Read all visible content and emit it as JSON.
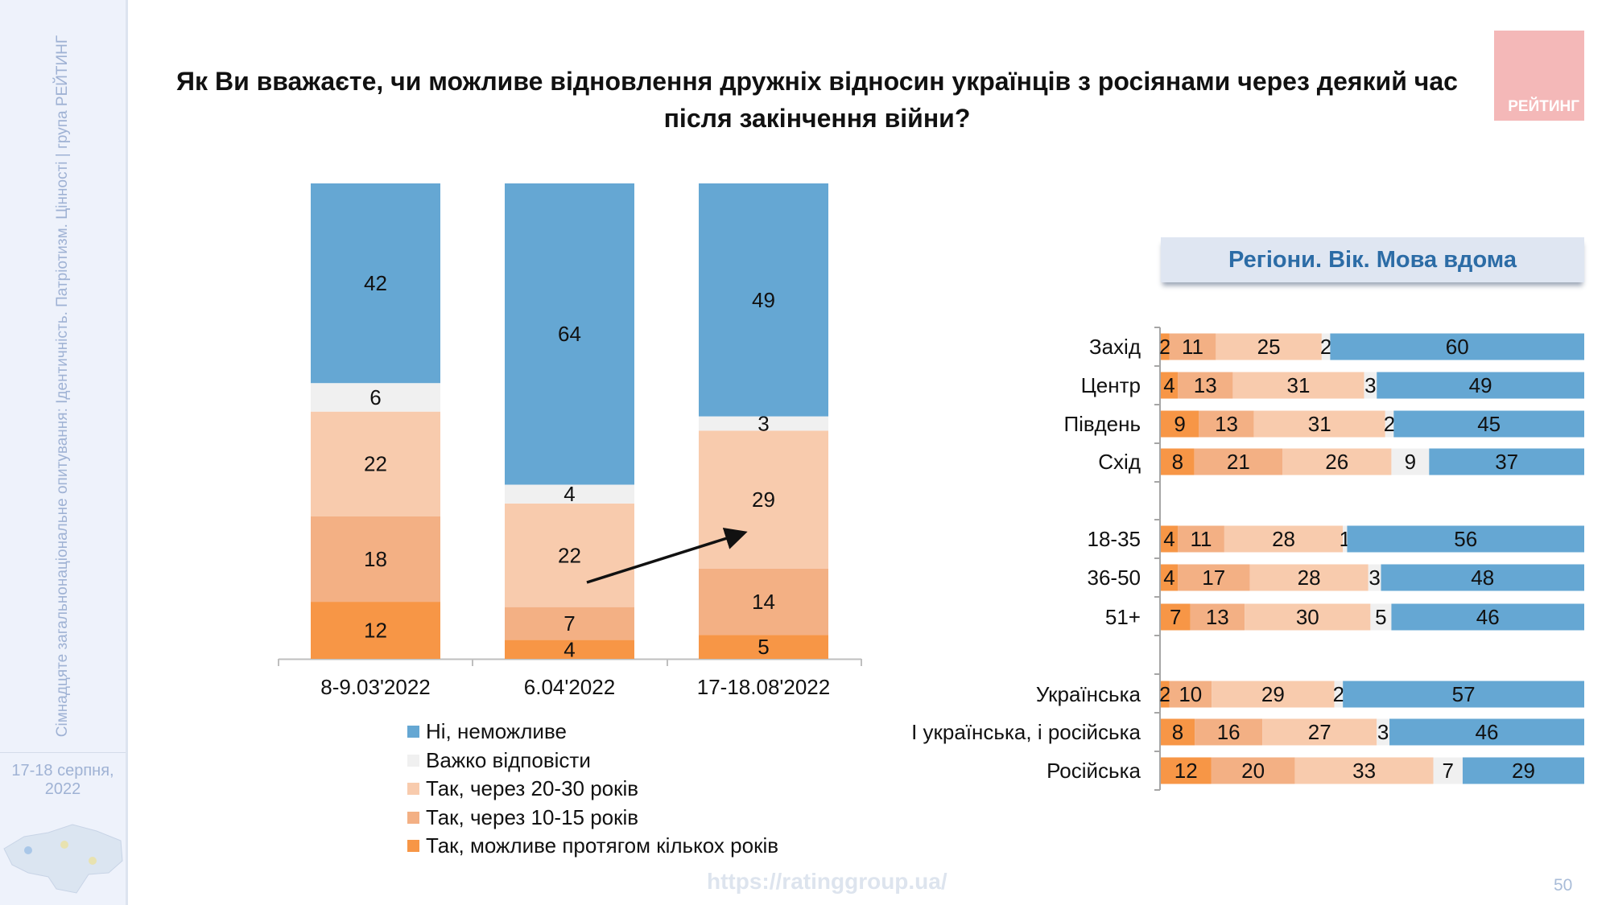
{
  "sidebar": {
    "vertical_text": "Сімнадцяте загальнонаціональне опитування: Ідентичність. Патріотизм. Цінності | група РЕЙТИНГ",
    "date": "17-18 серпня, 2022"
  },
  "title": "Як Ви вважаєте, чи можливе відновлення дружніх відносин українців з росіянами через деякий час після закінчення війни?",
  "logo": "РЕЙТИНГ",
  "colors": {
    "no": "#65a7d3",
    "hard": "#f0f0f0",
    "y2030": "#f8cbad",
    "y1015": "#f3b084",
    "few": "#f79646"
  },
  "chart_data": [
    {
      "type": "bar",
      "stacked": true,
      "orientation": "vertical",
      "categories": [
        "8-9.03'2022",
        "6.04'2022",
        "17-18.08'2022"
      ],
      "series": [
        {
          "name": "Так, можливе протягом кількох років",
          "key": "few",
          "values": [
            12,
            4,
            5
          ]
        },
        {
          "name": "Так, через 10-15 років",
          "key": "y1015",
          "values": [
            18,
            7,
            14
          ]
        },
        {
          "name": "Так, через 20-30 років",
          "key": "y2030",
          "values": [
            22,
            22,
            29
          ]
        },
        {
          "name": "Важко відповісти",
          "key": "hard",
          "values": [
            6,
            4,
            3
          ]
        },
        {
          "name": "Ні, неможливе",
          "key": "no",
          "values": [
            42,
            64,
            49
          ]
        }
      ],
      "legend_order": [
        "no",
        "hard",
        "y2030",
        "y1015",
        "few"
      ],
      "legend_position": "bottom",
      "grid": false,
      "annotation": "arrow from 6.04'2022 to 17-18.08'2022 (Так, через 20-30 років)"
    },
    {
      "type": "bar",
      "stacked": true,
      "orientation": "horizontal",
      "title": "Регіони. Вік. Мова вдома",
      "categories": [
        "Захід",
        "Центр",
        "Південь",
        "Схід",
        "18-35",
        "36-50",
        "51+",
        "Українська",
        "І українська, і російська",
        "Російська"
      ],
      "groups": [
        [
          0,
          1,
          2,
          3
        ],
        [
          4,
          5,
          6
        ],
        [
          7,
          8,
          9
        ]
      ],
      "series": [
        {
          "key": "few",
          "values": [
            2,
            4,
            9,
            8,
            4,
            4,
            7,
            2,
            8,
            12
          ]
        },
        {
          "key": "y1015",
          "values": [
            11,
            13,
            13,
            21,
            11,
            17,
            13,
            10,
            16,
            20
          ]
        },
        {
          "key": "y2030",
          "values": [
            25,
            31,
            31,
            26,
            28,
            28,
            30,
            29,
            27,
            33
          ]
        },
        {
          "key": "hard",
          "values": [
            2,
            3,
            2,
            9,
            1,
            3,
            5,
            2,
            3,
            7
          ]
        },
        {
          "key": "no",
          "values": [
            60,
            49,
            45,
            37,
            56,
            48,
            46,
            57,
            46,
            29
          ]
        }
      ]
    }
  ],
  "footer": {
    "url": "https://ratinggroup.ua/",
    "page": "50"
  }
}
